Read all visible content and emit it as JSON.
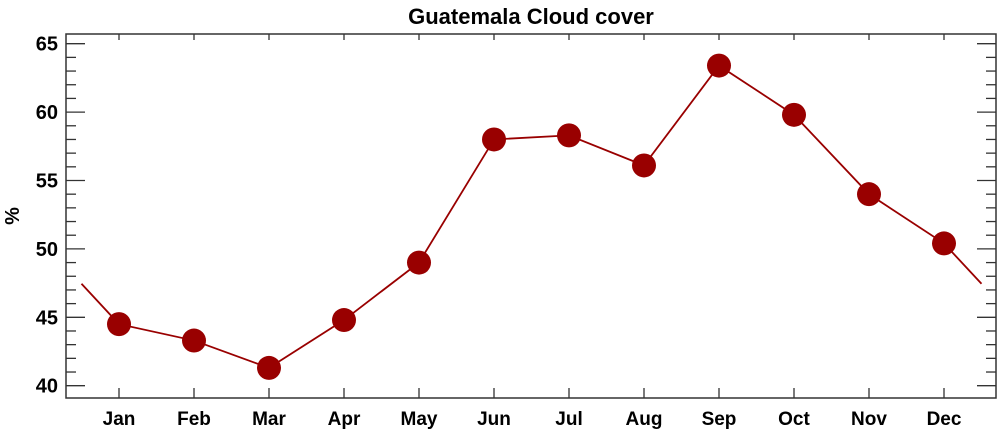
{
  "chart_data": {
    "type": "line",
    "title": "Guatemala Cloud cover",
    "xlabel": "",
    "ylabel": "%",
    "categories": [
      "Jan",
      "Feb",
      "Mar",
      "Apr",
      "May",
      "Jun",
      "Jul",
      "Aug",
      "Sep",
      "Oct",
      "Nov",
      "Dec"
    ],
    "values": [
      44.5,
      43.3,
      41.3,
      44.8,
      49.0,
      58.0,
      58.3,
      56.1,
      63.4,
      59.8,
      54.0,
      50.4
    ],
    "ylim": [
      39.3,
      65.7
    ],
    "yticks": [
      "40",
      "45",
      "50",
      "55",
      "60",
      "65"
    ],
    "grid": false,
    "legend": "none",
    "color": "#990000"
  }
}
